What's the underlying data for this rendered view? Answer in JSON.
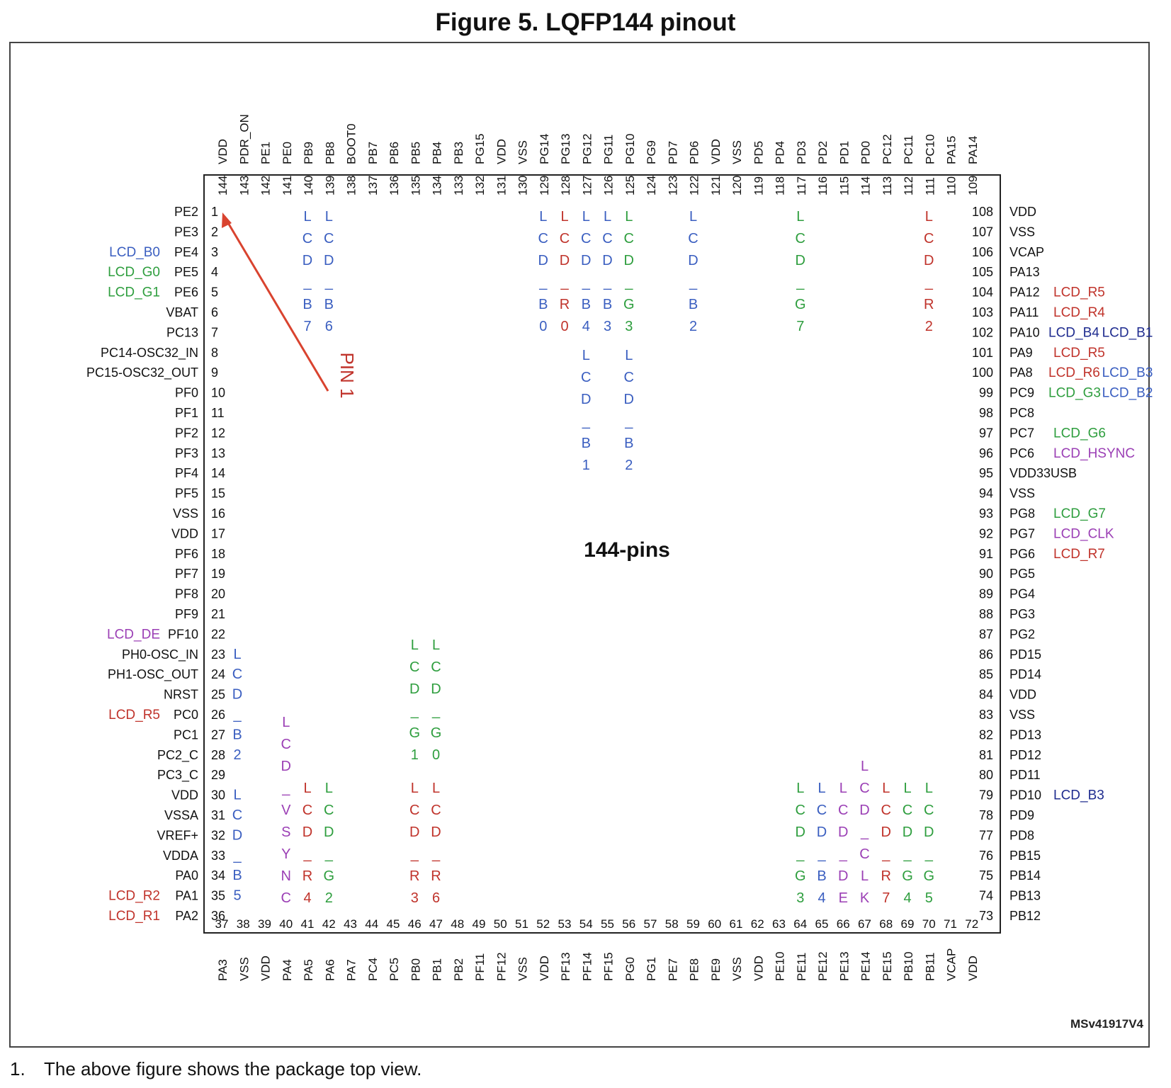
{
  "title": "Figure 5. LQFP144 pinout",
  "package_label": "144-pins",
  "pin1_label": "PIN 1",
  "ref_code": "MSv41917V4",
  "footnote": {
    "number": "1.",
    "text": "The above figure shows the package top view."
  },
  "colors": {
    "blue": "#3a5ec0",
    "green": "#2e9e3e",
    "red": "#c0332b",
    "purple": "#9b3fb5",
    "navy": "#1f2c8f",
    "arrow": "#d9432f",
    "outline": "#222222"
  },
  "left_pins": [
    {
      "n": "1",
      "name": "PE2"
    },
    {
      "n": "2",
      "name": "PE3"
    },
    {
      "n": "3",
      "name": "PE4"
    },
    {
      "n": "4",
      "name": "PE5"
    },
    {
      "n": "5",
      "name": "PE6"
    },
    {
      "n": "6",
      "name": "VBAT"
    },
    {
      "n": "7",
      "name": "PC13"
    },
    {
      "n": "8",
      "name": "PC14-OSC32_IN"
    },
    {
      "n": "9",
      "name": "PC15-OSC32_OUT"
    },
    {
      "n": "10",
      "name": "PF0"
    },
    {
      "n": "11",
      "name": "PF1"
    },
    {
      "n": "12",
      "name": "PF2"
    },
    {
      "n": "13",
      "name": "PF3"
    },
    {
      "n": "14",
      "name": "PF4"
    },
    {
      "n": "15",
      "name": "PF5"
    },
    {
      "n": "16",
      "name": "VSS"
    },
    {
      "n": "17",
      "name": "VDD"
    },
    {
      "n": "18",
      "name": "PF6"
    },
    {
      "n": "19",
      "name": "PF7"
    },
    {
      "n": "20",
      "name": "PF8"
    },
    {
      "n": "21",
      "name": "PF9"
    },
    {
      "n": "22",
      "name": "PF10"
    },
    {
      "n": "23",
      "name": "PH0-OSC_IN"
    },
    {
      "n": "24",
      "name": "PH1-OSC_OUT"
    },
    {
      "n": "25",
      "name": "NRST"
    },
    {
      "n": "26",
      "name": "PC0"
    },
    {
      "n": "27",
      "name": "PC1"
    },
    {
      "n": "28",
      "name": "PC2_C"
    },
    {
      "n": "29",
      "name": "PC3_C"
    },
    {
      "n": "30",
      "name": "VDD"
    },
    {
      "n": "31",
      "name": "VSSA"
    },
    {
      "n": "32",
      "name": "VREF+"
    },
    {
      "n": "33",
      "name": "VDDA"
    },
    {
      "n": "34",
      "name": "PA0"
    },
    {
      "n": "35",
      "name": "PA1"
    },
    {
      "n": "36",
      "name": "PA2"
    }
  ],
  "left_funcs": [
    {
      "pin": 3,
      "text": "LCD_B0",
      "color": "blue"
    },
    {
      "pin": 4,
      "text": "LCD_G0",
      "color": "green"
    },
    {
      "pin": 5,
      "text": "LCD_G1",
      "color": "green"
    },
    {
      "pin": 22,
      "text": "LCD_DE",
      "color": "purple"
    },
    {
      "pin": 26,
      "text": "LCD_R5",
      "color": "red"
    },
    {
      "pin": 35,
      "text": "LCD_R2",
      "color": "red"
    },
    {
      "pin": 36,
      "text": "LCD_R1",
      "color": "red"
    }
  ],
  "right_pins": [
    {
      "n": "108",
      "name": "VDD"
    },
    {
      "n": "107",
      "name": "VSS"
    },
    {
      "n": "106",
      "name": "VCAP"
    },
    {
      "n": "105",
      "name": "PA13"
    },
    {
      "n": "104",
      "name": "PA12"
    },
    {
      "n": "103",
      "name": "PA11"
    },
    {
      "n": "102",
      "name": "PA10"
    },
    {
      "n": "101",
      "name": "PA9"
    },
    {
      "n": "100",
      "name": "PA8"
    },
    {
      "n": "99",
      "name": "PC9"
    },
    {
      "n": "98",
      "name": "PC8"
    },
    {
      "n": "97",
      "name": "PC7"
    },
    {
      "n": "96",
      "name": "PC6"
    },
    {
      "n": "95",
      "name": "VDD33USB"
    },
    {
      "n": "94",
      "name": "VSS"
    },
    {
      "n": "93",
      "name": "PG8"
    },
    {
      "n": "92",
      "name": "PG7"
    },
    {
      "n": "91",
      "name": "PG6"
    },
    {
      "n": "90",
      "name": "PG5"
    },
    {
      "n": "89",
      "name": "PG4"
    },
    {
      "n": "88",
      "name": "PG3"
    },
    {
      "n": "87",
      "name": "PG2"
    },
    {
      "n": "86",
      "name": "PD15"
    },
    {
      "n": "85",
      "name": "PD14"
    },
    {
      "n": "84",
      "name": "VDD"
    },
    {
      "n": "83",
      "name": "VSS"
    },
    {
      "n": "82",
      "name": "PD13"
    },
    {
      "n": "81",
      "name": "PD12"
    },
    {
      "n": "80",
      "name": "PD11"
    },
    {
      "n": "79",
      "name": "PD10"
    },
    {
      "n": "78",
      "name": "PD9"
    },
    {
      "n": "77",
      "name": "PD8"
    },
    {
      "n": "76",
      "name": "PB15"
    },
    {
      "n": "75",
      "name": "PB14"
    },
    {
      "n": "74",
      "name": "PB13"
    },
    {
      "n": "73",
      "name": "PB12"
    }
  ],
  "right_funcs": [
    {
      "pin": 104,
      "parts": [
        {
          "text": "LCD_R5",
          "color": "red"
        }
      ]
    },
    {
      "pin": 103,
      "parts": [
        {
          "text": "LCD_R4",
          "color": "red"
        }
      ]
    },
    {
      "pin": 102,
      "parts": [
        {
          "text": "LCD_B4",
          "color": "navy"
        },
        {
          "text": "LCD_B1",
          "color": "navy"
        }
      ]
    },
    {
      "pin": 101,
      "parts": [
        {
          "text": "LCD_R5",
          "color": "red"
        }
      ]
    },
    {
      "pin": 100,
      "parts": [
        {
          "text": "LCD_R6",
          "color": "red"
        },
        {
          "text": "LCD_B3",
          "color": "blue"
        }
      ]
    },
    {
      "pin": 99,
      "parts": [
        {
          "text": "LCD_G3",
          "color": "green"
        },
        {
          "text": "LCD_B2",
          "color": "blue"
        }
      ]
    },
    {
      "pin": 97,
      "parts": [
        {
          "text": "LCD_G6",
          "color": "green"
        }
      ]
    },
    {
      "pin": 96,
      "parts": [
        {
          "text": "LCD_HSYNC",
          "color": "purple"
        }
      ]
    },
    {
      "pin": 93,
      "parts": [
        {
          "text": "LCD_G7",
          "color": "green"
        }
      ]
    },
    {
      "pin": 92,
      "parts": [
        {
          "text": "LCD_CLK",
          "color": "purple"
        }
      ]
    },
    {
      "pin": 91,
      "parts": [
        {
          "text": "LCD_R7",
          "color": "red"
        }
      ]
    },
    {
      "pin": 79,
      "parts": [
        {
          "text": "LCD_B3",
          "color": "navy"
        }
      ]
    }
  ],
  "top_pins": [
    {
      "n": "144",
      "name": "VDD"
    },
    {
      "n": "143",
      "name": "PDR_ON"
    },
    {
      "n": "142",
      "name": "PE1"
    },
    {
      "n": "141",
      "name": "PE0"
    },
    {
      "n": "140",
      "name": "PB9"
    },
    {
      "n": "139",
      "name": "PB8"
    },
    {
      "n": "138",
      "name": "BOOT0"
    },
    {
      "n": "137",
      "name": "PB7"
    },
    {
      "n": "136",
      "name": "PB6"
    },
    {
      "n": "135",
      "name": "PB5"
    },
    {
      "n": "134",
      "name": "PB4"
    },
    {
      "n": "133",
      "name": "PB3"
    },
    {
      "n": "132",
      "name": "PG15"
    },
    {
      "n": "131",
      "name": "VDD"
    },
    {
      "n": "130",
      "name": "VSS"
    },
    {
      "n": "129",
      "name": "PG14"
    },
    {
      "n": "128",
      "name": "PG13"
    },
    {
      "n": "127",
      "name": "PG12"
    },
    {
      "n": "126",
      "name": "PG11"
    },
    {
      "n": "125",
      "name": "PG10"
    },
    {
      "n": "124",
      "name": "PG9"
    },
    {
      "n": "123",
      "name": "PD7"
    },
    {
      "n": "122",
      "name": "PD6"
    },
    {
      "n": "121",
      "name": "VDD"
    },
    {
      "n": "120",
      "name": "VSS"
    },
    {
      "n": "119",
      "name": "PD5"
    },
    {
      "n": "118",
      "name": "PD4"
    },
    {
      "n": "117",
      "name": "PD3"
    },
    {
      "n": "116",
      "name": "PD2"
    },
    {
      "n": "115",
      "name": "PD1"
    },
    {
      "n": "114",
      "name": "PD0"
    },
    {
      "n": "113",
      "name": "PC12"
    },
    {
      "n": "112",
      "name": "PC11"
    },
    {
      "n": "111",
      "name": "PC10"
    },
    {
      "n": "110",
      "name": "PA15"
    },
    {
      "n": "109",
      "name": "PA14"
    }
  ],
  "bottom_pins": [
    {
      "n": "37",
      "name": "PA3"
    },
    {
      "n": "38",
      "name": "VSS"
    },
    {
      "n": "39",
      "name": "VDD"
    },
    {
      "n": "40",
      "name": "PA4"
    },
    {
      "n": "41",
      "name": "PA5"
    },
    {
      "n": "42",
      "name": "PA6"
    },
    {
      "n": "43",
      "name": "PA7"
    },
    {
      "n": "44",
      "name": "PC4"
    },
    {
      "n": "45",
      "name": "PC5"
    },
    {
      "n": "46",
      "name": "PB0"
    },
    {
      "n": "47",
      "name": "PB1"
    },
    {
      "n": "48",
      "name": "PB2"
    },
    {
      "n": "49",
      "name": "PF11"
    },
    {
      "n": "50",
      "name": "PF12"
    },
    {
      "n": "51",
      "name": "VSS"
    },
    {
      "n": "52",
      "name": "VDD"
    },
    {
      "n": "53",
      "name": "PF13"
    },
    {
      "n": "54",
      "name": "PF14"
    },
    {
      "n": "55",
      "name": "PF15"
    },
    {
      "n": "56",
      "name": "PG0"
    },
    {
      "n": "57",
      "name": "PG1"
    },
    {
      "n": "58",
      "name": "PE7"
    },
    {
      "n": "59",
      "name": "PE8"
    },
    {
      "n": "60",
      "name": "PE9"
    },
    {
      "n": "61",
      "name": "VSS"
    },
    {
      "n": "62",
      "name": "VDD"
    },
    {
      "n": "63",
      "name": "PE10"
    },
    {
      "n": "64",
      "name": "PE11"
    },
    {
      "n": "65",
      "name": "PE12"
    },
    {
      "n": "66",
      "name": "PE13"
    },
    {
      "n": "67",
      "name": "PE14"
    },
    {
      "n": "68",
      "name": "PE15"
    },
    {
      "n": "69",
      "name": "PB10"
    },
    {
      "n": "70",
      "name": "PB11"
    },
    {
      "n": "71",
      "name": "VCAP"
    },
    {
      "n": "72",
      "name": "VDD"
    }
  ],
  "top_funcs": [
    {
      "pin": 140,
      "chars": [
        "L",
        "C",
        "D",
        "_",
        "B",
        "7"
      ],
      "color": "blue",
      "tier": 1
    },
    {
      "pin": 139,
      "chars": [
        "L",
        "C",
        "D",
        "_",
        "B",
        "6"
      ],
      "color": "blue",
      "tier": 1
    },
    {
      "pin": 129,
      "chars": [
        "L",
        "C",
        "D",
        "_",
        "B",
        "0"
      ],
      "color": "blue",
      "tier": 1
    },
    {
      "pin": 128,
      "chars": [
        "L",
        "C",
        "D",
        "_",
        "R",
        "0"
      ],
      "color": "red",
      "tier": 1
    },
    {
      "pin": 127,
      "chars": [
        "L",
        "C",
        "D",
        "_",
        "B",
        "4"
      ],
      "color": "blue",
      "tier": 1
    },
    {
      "pin": 126,
      "chars": [
        "L",
        "C",
        "D",
        "_",
        "B",
        "3"
      ],
      "color": "blue",
      "tier": 1
    },
    {
      "pin": 125,
      "chars": [
        "L",
        "C",
        "D",
        "_",
        "G",
        "3"
      ],
      "color": "green",
      "tier": 1
    },
    {
      "pin": 122,
      "chars": [
        "L",
        "C",
        "D",
        "_",
        "B",
        "2"
      ],
      "color": "blue",
      "tier": 1
    },
    {
      "pin": 117,
      "chars": [
        "L",
        "C",
        "D",
        "_",
        "G",
        "7"
      ],
      "color": "green",
      "tier": 1
    },
    {
      "pin": 111,
      "chars": [
        "L",
        "C",
        "D",
        "_",
        "R",
        "2"
      ],
      "color": "red",
      "tier": 1
    },
    {
      "pin": 127,
      "chars": [
        "L",
        "C",
        "D",
        "_",
        "B",
        "1"
      ],
      "color": "blue",
      "tier": 2
    },
    {
      "pin": 125,
      "chars": [
        "L",
        "C",
        "D",
        "_",
        "B",
        "2"
      ],
      "color": "blue",
      "tier": 2
    }
  ],
  "bottom_funcs": [
    {
      "pin": 40,
      "chars": [
        "L",
        "C",
        "D",
        "_",
        "V",
        "S",
        "Y",
        "N",
        "C"
      ],
      "color": "purple"
    },
    {
      "pin": 41,
      "chars": [
        "L",
        "C",
        "D",
        "_",
        "R",
        "4"
      ],
      "color": "red"
    },
    {
      "pin": 42,
      "chars": [
        "L",
        "C",
        "D",
        "_",
        "G",
        "2"
      ],
      "color": "green"
    },
    {
      "pin": 46,
      "chars": [
        "L",
        "C",
        "D",
        "_",
        "R",
        "3"
      ],
      "color": "red"
    },
    {
      "pin": 47,
      "chars": [
        "L",
        "C",
        "D",
        "_",
        "R",
        "6"
      ],
      "color": "red"
    },
    {
      "pin": 46,
      "chars": [
        "L",
        "C",
        "D",
        "_",
        "G",
        "1"
      ],
      "color": "green",
      "upper": true
    },
    {
      "pin": 47,
      "chars": [
        "L",
        "C",
        "D",
        "_",
        "G",
        "0"
      ],
      "color": "green",
      "upper": true
    },
    {
      "pin": 64,
      "chars": [
        "L",
        "C",
        "D",
        "_",
        "G",
        "3"
      ],
      "color": "green"
    },
    {
      "pin": 65,
      "chars": [
        "L",
        "C",
        "D",
        "_",
        "B",
        "4"
      ],
      "color": "blue"
    },
    {
      "pin": 66,
      "chars": [
        "L",
        "C",
        "D",
        "_",
        "D",
        "E"
      ],
      "color": "purple"
    },
    {
      "pin": 67,
      "chars": [
        "L",
        "C",
        "D",
        "_",
        "C",
        "L",
        "K"
      ],
      "color": "purple"
    },
    {
      "pin": 68,
      "chars": [
        "L",
        "C",
        "D",
        "_",
        "R",
        "7"
      ],
      "color": "red"
    },
    {
      "pin": 69,
      "chars": [
        "L",
        "C",
        "D",
        "_",
        "G",
        "4"
      ],
      "color": "green"
    },
    {
      "pin": 70,
      "chars": [
        "L",
        "C",
        "D",
        "_",
        "G",
        "5"
      ],
      "color": "green"
    }
  ],
  "inner_left_funcs": [
    {
      "start_pin": 23,
      "chars": [
        "L",
        "C",
        "D",
        "_",
        "B",
        "2"
      ],
      "color": "blue"
    },
    {
      "start_pin": 30,
      "chars": [
        "L",
        "C",
        "D",
        "_",
        "B",
        "5"
      ],
      "color": "blue"
    }
  ]
}
